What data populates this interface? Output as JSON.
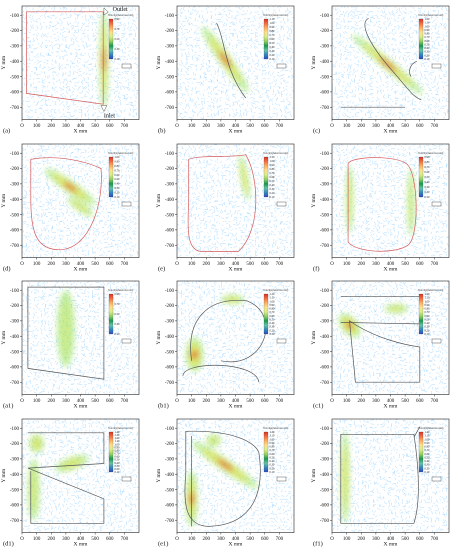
{
  "figure": {
    "axis": {
      "xlabel": "X mm",
      "ylabel": "Y mm",
      "x_ticks": [
        "O",
        "100",
        "200",
        "300",
        "400",
        "500",
        "600",
        "700"
      ],
      "y_ticks": [
        "-100",
        "-200",
        "-300",
        "-400",
        "-500",
        "-600",
        "-700"
      ]
    },
    "colorbar_title": "Velocity(meters/second)",
    "colors": {
      "vector": "#7fc7ff",
      "hot_red": "#e53a1e",
      "hot_yellow": "#f2e14a",
      "hot_green": "#8fe04b",
      "tank_outline_gray": "#555555",
      "tank_outline_red": "#d55a5a"
    },
    "panels": [
      {
        "label": "(a)",
        "outlet": "Outlet",
        "inlet": "Inlet",
        "colorbar": [
          "0.90",
          "0.70",
          "0.50",
          "0.30",
          "0.10"
        ]
      },
      {
        "label": "(b)",
        "colorbar": [
          "1.10",
          "1.00",
          "0.90",
          "0.80",
          "0.70",
          "0.60",
          "0.50",
          "0.40",
          "0.30",
          "0.20",
          "0.10"
        ]
      },
      {
        "label": "(c)",
        "colorbar": [
          "1.20",
          "1.10",
          "1.00",
          "0.90",
          "0.80",
          "0.70",
          "0.60",
          "0.50",
          "0.40",
          "0.30",
          "0.20",
          "0.10"
        ]
      },
      {
        "label": "(d)",
        "colorbar": [
          "1.00",
          "0.90",
          "0.80",
          "0.70",
          "0.60",
          "0.50",
          "0.40",
          "0.30",
          "0.20",
          "0.10"
        ]
      },
      {
        "label": "(e)",
        "colorbar": [
          "1.10",
          "1.00",
          "0.90",
          "0.80",
          "0.70",
          "0.60",
          "0.50",
          "0.40",
          "0.30",
          "0.20",
          "0.10"
        ]
      },
      {
        "label": "(f)",
        "colorbar": [
          "0.90",
          "0.80",
          "0.70",
          "0.60",
          "0.50",
          "0.40",
          "0.30",
          "0.20",
          "0.10"
        ]
      },
      {
        "label": "(a1)",
        "colorbar": [
          "0.90",
          "0.70",
          "0.50",
          "0.30",
          "0.10"
        ]
      },
      {
        "label": "(b1)",
        "colorbar": [
          "1.20",
          "1.10",
          "1.00",
          "0.90",
          "0.80",
          "0.70",
          "0.60",
          "0.50",
          "0.40",
          "0.30",
          "0.20",
          "0.10"
        ]
      },
      {
        "label": "(c1)",
        "colorbar": [
          "1.20",
          "1.10",
          "1.00",
          "0.90",
          "0.80",
          "0.70",
          "0.60",
          "0.50",
          "0.40",
          "0.30",
          "0.20",
          "0.10"
        ]
      },
      {
        "label": "(d1)",
        "colorbar": [
          "1.40",
          "1.30",
          "1.20",
          "1.10",
          "1.00",
          "0.90",
          "0.80",
          "0.70",
          "0.60",
          "0.50",
          "0.40",
          "0.30",
          "0.20",
          "0.10"
        ]
      },
      {
        "label": "(e1)",
        "colorbar": [
          "1.20",
          "1.10",
          "1.00",
          "0.90",
          "0.80",
          "0.70",
          "0.60",
          "0.50",
          "0.40",
          "0.30",
          "0.20",
          "0.10"
        ]
      },
      {
        "label": "(f1)",
        "colorbar": [
          "1.20",
          "1.10",
          "1.00",
          "0.90",
          "0.80",
          "0.70",
          "0.60",
          "0.50",
          "0.40",
          "0.30",
          "0.20",
          "0.10"
        ]
      }
    ]
  }
}
